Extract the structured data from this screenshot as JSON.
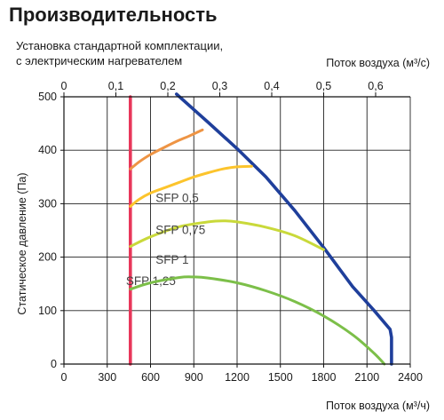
{
  "header": {
    "title": "Производительность",
    "subtitle_line1": "Установка стандартной комплектации,",
    "subtitle_line2": "с электрическим нагревателем"
  },
  "chart_data": {
    "type": "line",
    "title": "Производительность",
    "subtitle": "Установка стандартной комплектации, с электрическим нагревателем",
    "xlabel": "Поток воздуха (м³/ч)",
    "x2label": "Поток воздуха (м³/с)",
    "ylabel": "Статическое давление (Па)",
    "xlim": [
      0,
      2400
    ],
    "ylim": [
      0,
      500
    ],
    "x_ticks": [
      0,
      300,
      600,
      900,
      1200,
      1500,
      1800,
      2100,
      2400
    ],
    "y_ticks": [
      0,
      100,
      200,
      300,
      400,
      500
    ],
    "x2_ticks": [
      "0",
      "0,1",
      "0,2",
      "0,3",
      "0,4",
      "0,5",
      "0,6"
    ],
    "grid": true,
    "series": [
      {
        "name": "",
        "color": "#1f3f9b",
        "x": [
          780,
          1000,
          1200,
          1400,
          1600,
          1800,
          2000,
          2150,
          2260,
          2270,
          2270
        ],
        "y": [
          505,
          452,
          403,
          350,
          287,
          218,
          145,
          100,
          65,
          50,
          0
        ]
      },
      {
        "name": "",
        "color": "#e8375a",
        "x": [
          460,
          460
        ],
        "y": [
          0,
          500
        ]
      },
      {
        "name": "SFP 1,25",
        "color": "#ee9444",
        "x": [
          460,
          520,
          600,
          700,
          800,
          880,
          960
        ],
        "y": [
          365,
          378,
          392,
          406,
          419,
          428,
          438
        ]
      },
      {
        "name": "SFP 1",
        "color": "#fcc42c",
        "x": [
          460,
          520,
          600,
          700,
          800,
          900,
          1000,
          1100,
          1200,
          1300
        ],
        "y": [
          295,
          308,
          320,
          330,
          340,
          350,
          358,
          365,
          369,
          370
        ]
      },
      {
        "name": "SFP 0,75",
        "color": "#c9d93a",
        "x": [
          460,
          600,
          800,
          1000,
          1100,
          1200,
          1400,
          1600,
          1800
        ],
        "y": [
          220,
          238,
          257,
          266,
          268,
          266,
          256,
          240,
          214
        ]
      },
      {
        "name": "SFP 0,5",
        "color": "#7cbf49",
        "x": [
          460,
          600,
          800,
          900,
          1000,
          1200,
          1400,
          1600,
          1800,
          2000,
          2150,
          2220
        ],
        "y": [
          140,
          152,
          162,
          163,
          161,
          152,
          137,
          117,
          90,
          55,
          20,
          0
        ]
      }
    ]
  }
}
